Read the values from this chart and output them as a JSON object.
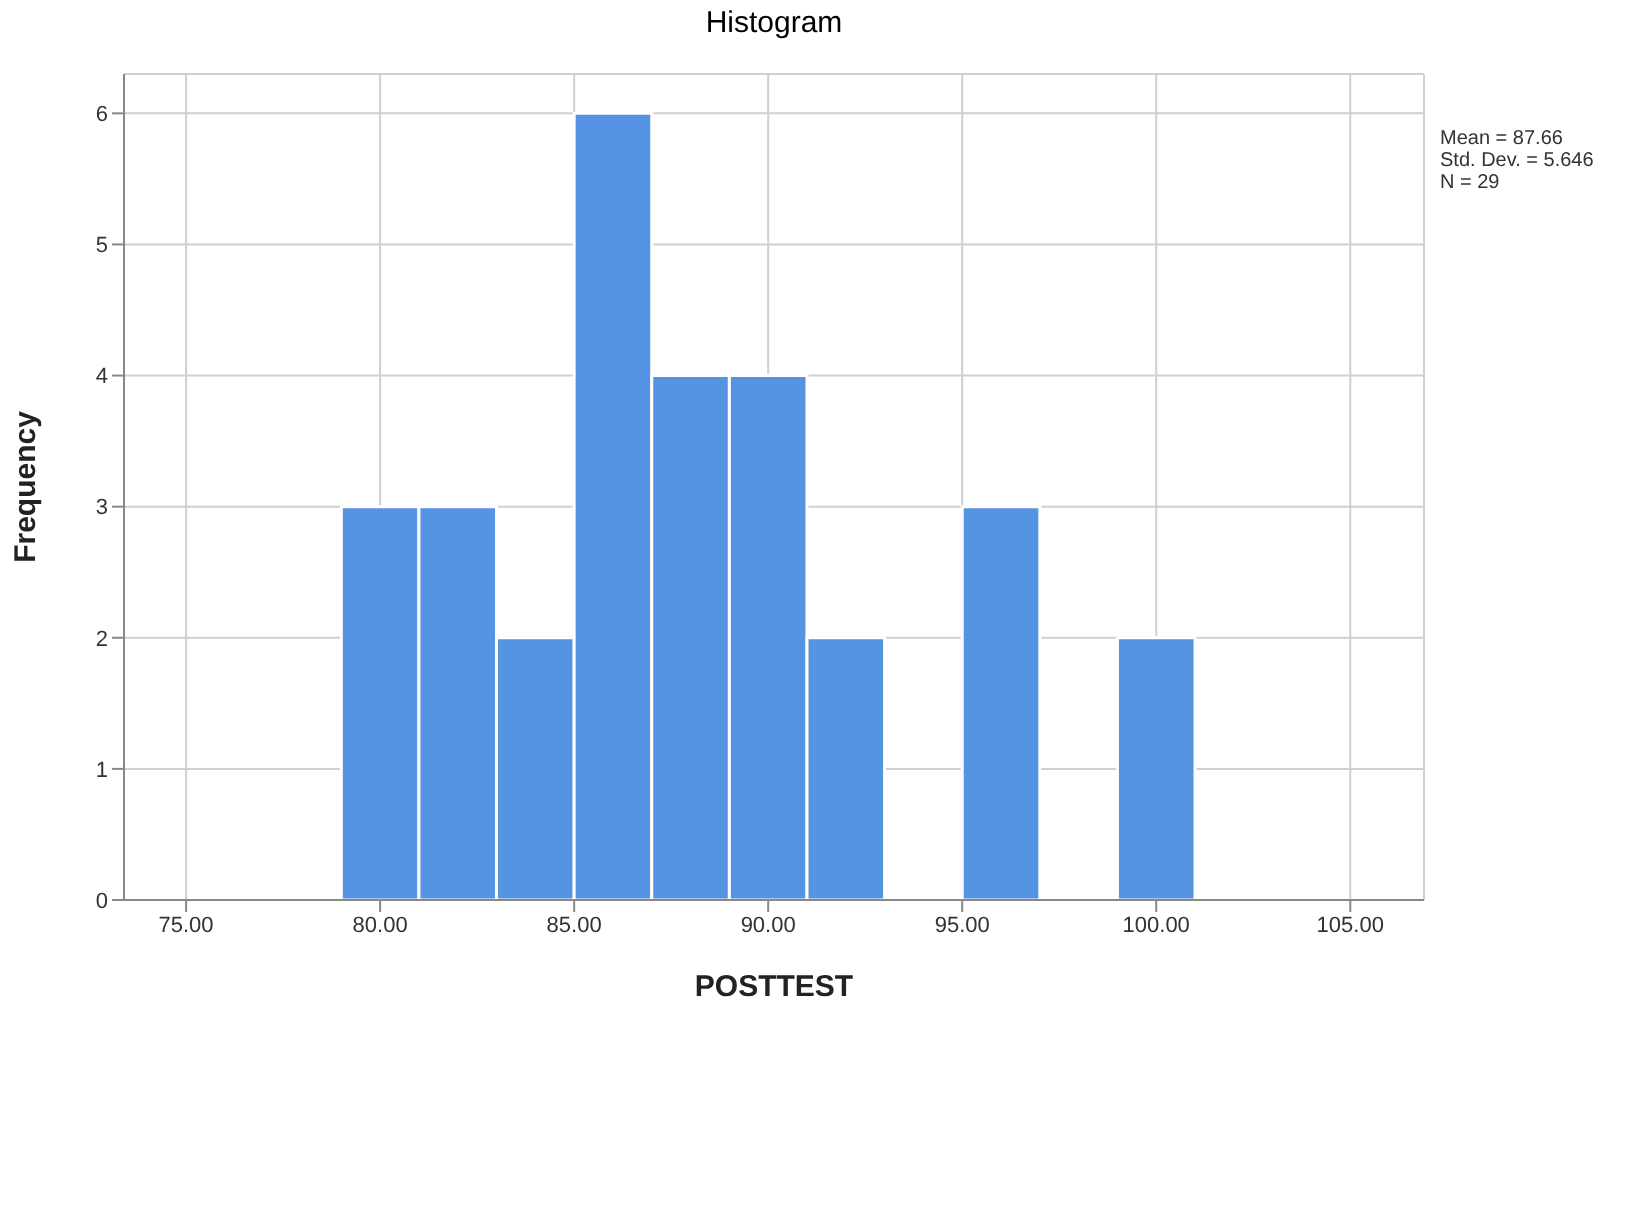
{
  "chart_data": {
    "type": "histogram",
    "title": "Histogram",
    "xlabel": "POSTTEST",
    "ylabel": "Frequency",
    "bins": [
      79,
      81,
      83,
      85,
      87,
      89,
      91,
      93,
      95,
      97,
      99,
      101
    ],
    "values": [
      3,
      3,
      2,
      6,
      4,
      4,
      2,
      0,
      3,
      0,
      2
    ],
    "color": "#5593e3",
    "xlim": [
      73.4,
      106.9
    ],
    "xticks": [
      {
        "value": 75,
        "label": "75.00"
      },
      {
        "value": 80,
        "label": "80.00"
      },
      {
        "value": 85,
        "label": "85.00"
      },
      {
        "value": 90,
        "label": "90.00"
      },
      {
        "value": 95,
        "label": "95.00"
      },
      {
        "value": 100,
        "label": "100.00"
      },
      {
        "value": 105,
        "label": "105.00"
      }
    ],
    "ylim": [
      0,
      6.3
    ],
    "yticks": [
      0,
      1,
      2,
      3,
      4,
      5,
      6
    ],
    "grid": true,
    "annotations": [
      "Mean = 87.66",
      "Std. Dev. = 5.646",
      "N = 29"
    ]
  }
}
